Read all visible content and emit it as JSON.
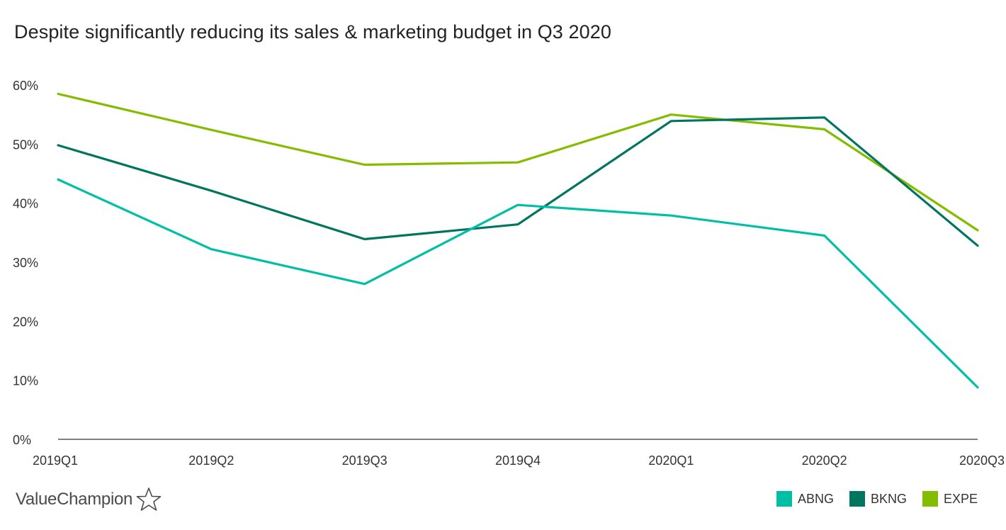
{
  "chart_data": {
    "type": "line",
    "title": "Despite significantly reducing its sales & marketing budget in Q3 2020",
    "categories": [
      "2019Q1",
      "2019Q2",
      "2019Q3",
      "2019Q4",
      "2020Q1",
      "2020Q2",
      "2020Q3"
    ],
    "series": [
      {
        "name": "ABNG",
        "color": "#00BFA5",
        "values": [
          44,
          32.2,
          26.3,
          39.7,
          37.9,
          34.5,
          8.8
        ]
      },
      {
        "name": "BKNG",
        "color": "#007560",
        "values": [
          49.8,
          42.1,
          33.9,
          36.4,
          53.9,
          54.5,
          32.8
        ]
      },
      {
        "name": "EXPE",
        "color": "#84BD00",
        "values": [
          58.5,
          52.4,
          46.5,
          46.9,
          55,
          52.5,
          35.4
        ]
      }
    ],
    "yticks": [
      "0%",
      "10%",
      "20%",
      "30%",
      "40%",
      "50%",
      "60%"
    ],
    "ylim": [
      0,
      60
    ],
    "xlabel": "",
    "ylabel": "",
    "grid": false,
    "legend": "bottom-right"
  },
  "brand": {
    "name": "ValueChampion",
    "logo_icon": "star-outline-icon"
  }
}
